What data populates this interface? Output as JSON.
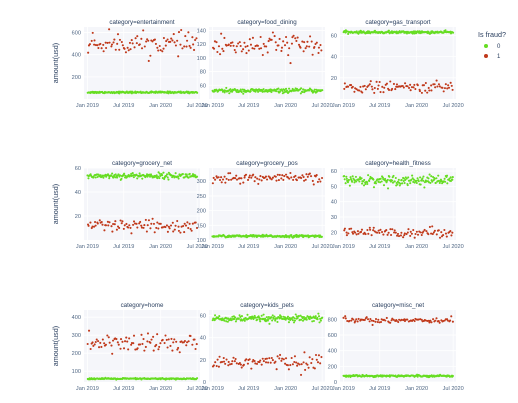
{
  "chart_data": {
    "type": "scatter",
    "ylabel": "amount(usd)",
    "legend": {
      "title": "Is fraud?",
      "placement": "top-right",
      "items": [
        {
          "label": "0",
          "color": "#66dd22"
        },
        {
          "label": "1",
          "color": "#c0391b"
        }
      ]
    },
    "x_ticks": [
      "Jan 2019",
      "Jul 2019",
      "Jan 2020",
      "Jul 2020"
    ],
    "x_range": [
      "2018-12-15",
      "2020-07-15"
    ],
    "grid": true,
    "panels": [
      {
        "title": "category=entertainment",
        "ylim": [
          0,
          650
        ],
        "yticks": [
          200,
          400,
          600
        ],
        "series": [
          {
            "class": "0",
            "center": 60,
            "spread": 4
          },
          {
            "class": "1",
            "center": 500,
            "spread": 45
          }
        ]
      },
      {
        "title": "category=food_dining",
        "ylim": [
          40,
          145
        ],
        "yticks": [
          60,
          80,
          100,
          120,
          140
        ],
        "series": [
          {
            "class": "0",
            "center": 52,
            "spread": 1.5
          },
          {
            "class": "1",
            "center": 118,
            "spread": 9
          }
        ]
      },
      {
        "title": "category=gas_transport",
        "ylim": [
          0,
          68
        ],
        "yticks": [
          20,
          40,
          60
        ],
        "series": [
          {
            "class": "0",
            "center": 63,
            "spread": 0.6
          },
          {
            "class": "1",
            "center": 11,
            "spread": 2.5
          }
        ]
      },
      {
        "title": "category=grocery_net",
        "ylim": [
          0,
          60
        ],
        "yticks": [
          20,
          40,
          60
        ],
        "series": [
          {
            "class": "0",
            "center": 53.5,
            "spread": 1.2
          },
          {
            "class": "1",
            "center": 11,
            "spread": 3
          }
        ]
      },
      {
        "title": "category=grocery_pos",
        "ylim": [
          100,
          345
        ],
        "yticks": [
          100,
          150,
          200,
          250,
          300
        ],
        "series": [
          {
            "class": "0",
            "center": 113,
            "spread": 2
          },
          {
            "class": "1",
            "center": 310,
            "spread": 8
          }
        ]
      },
      {
        "title": "category=health_fitness",
        "ylim": [
          15,
          62
        ],
        "yticks": [
          20,
          30,
          40,
          50,
          60
        ],
        "series": [
          {
            "class": "0",
            "center": 54,
            "spread": 1.6
          },
          {
            "class": "1",
            "center": 20,
            "spread": 1.5
          }
        ]
      },
      {
        "title": "category=home",
        "ylim": [
          40,
          440
        ],
        "yticks": [
          100,
          200,
          300,
          400
        ],
        "series": [
          {
            "class": "0",
            "center": 58,
            "spread": 2
          },
          {
            "class": "1",
            "center": 255,
            "spread": 28
          }
        ]
      },
      {
        "title": "category=kids_pets",
        "ylim": [
          0,
          65
        ],
        "yticks": [
          0,
          20,
          40,
          60
        ],
        "series": [
          {
            "class": "0",
            "center": 57,
            "spread": 1.5
          },
          {
            "class": "1",
            "center": 18,
            "spread": 3.5
          }
        ]
      },
      {
        "title": "category=misc_net",
        "ylim": [
          0,
          920
        ],
        "yticks": [
          0,
          200,
          400,
          600,
          800
        ],
        "series": [
          {
            "class": "0",
            "center": 78,
            "spread": 6
          },
          {
            "class": "1",
            "center": 790,
            "spread": 18
          }
        ]
      }
    ]
  }
}
